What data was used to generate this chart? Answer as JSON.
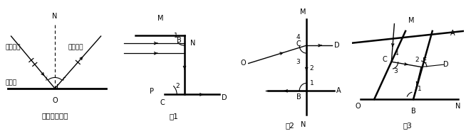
{
  "fig_width": 6.54,
  "fig_height": 1.92,
  "dpi": 100,
  "bg_color": "#ffffff",
  "line_color": "#000000",
  "captions": [
    "光的反射定律",
    "图1",
    "图2",
    "图3"
  ],
  "font_size": 7.0,
  "font_size_cap": 7.5
}
